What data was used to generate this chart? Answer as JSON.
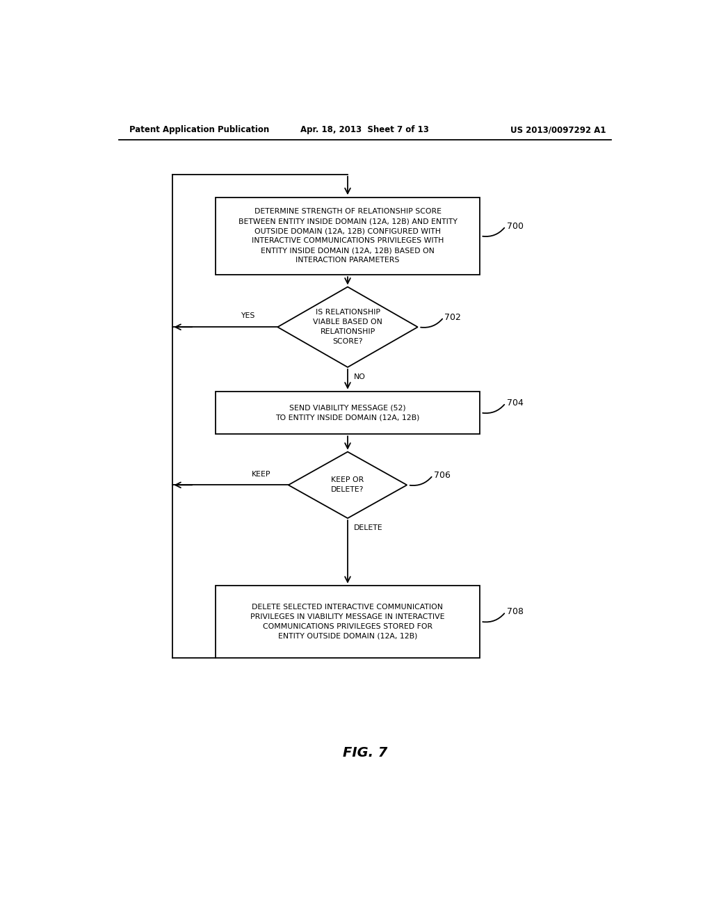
{
  "bg_color": "#ffffff",
  "header_left": "Patent Application Publication",
  "header_center": "Apr. 18, 2013  Sheet 7 of 13",
  "header_right": "US 2013/0097292 A1",
  "header_fontsize": 8.5,
  "fig_label": "FIG. 7",
  "fig_label_fontsize": 14,
  "box700_text": "DETERMINE STRENGTH OF RELATIONSHIP SCORE\nBETWEEN ENTITY INSIDE DOMAIN (12A, 12B) AND ENTITY\nOUTSIDE DOMAIN (12A, 12B) CONFIGURED WITH\nINTERACTIVE COMMUNICATIONS PRIVILEGES WITH\nENTITY INSIDE DOMAIN (12A, 12B) BASED ON\nINTERACTION PARAMETERS",
  "box700_label": "700",
  "diamond702_text": "IS RELATIONSHIP\nVIABLE BASED ON\nRELATIONSHIP\nSCORE?",
  "diamond702_label": "702",
  "diamond702_yes": "YES",
  "diamond702_no": "NO",
  "box704_text": "SEND VIABILITY MESSAGE (52)\nTO ENTITY INSIDE DOMAIN (12A, 12B)",
  "box704_label": "704",
  "diamond706_text": "KEEP OR\nDELETE?",
  "diamond706_label": "706",
  "diamond706_keep": "KEEP",
  "diamond706_delete": "DELETE",
  "box708_text": "DELETE SELECTED INTERACTIVE COMMUNICATION\nPRIVILEGES IN VIABILITY MESSAGE IN INTERACTIVE\nCOMMUNICATIONS PRIVILEGES STORED FOR\nENTITY OUTSIDE DOMAIN (12A, 12B)",
  "box708_label": "708",
  "text_fontsize": 7.8,
  "label_fontsize": 9,
  "arrow_color": "#000000",
  "box_color": "#ffffff",
  "box_edge_color": "#000000",
  "diamond_color": "#ffffff",
  "diamond_edge_color": "#000000",
  "lw": 1.3
}
